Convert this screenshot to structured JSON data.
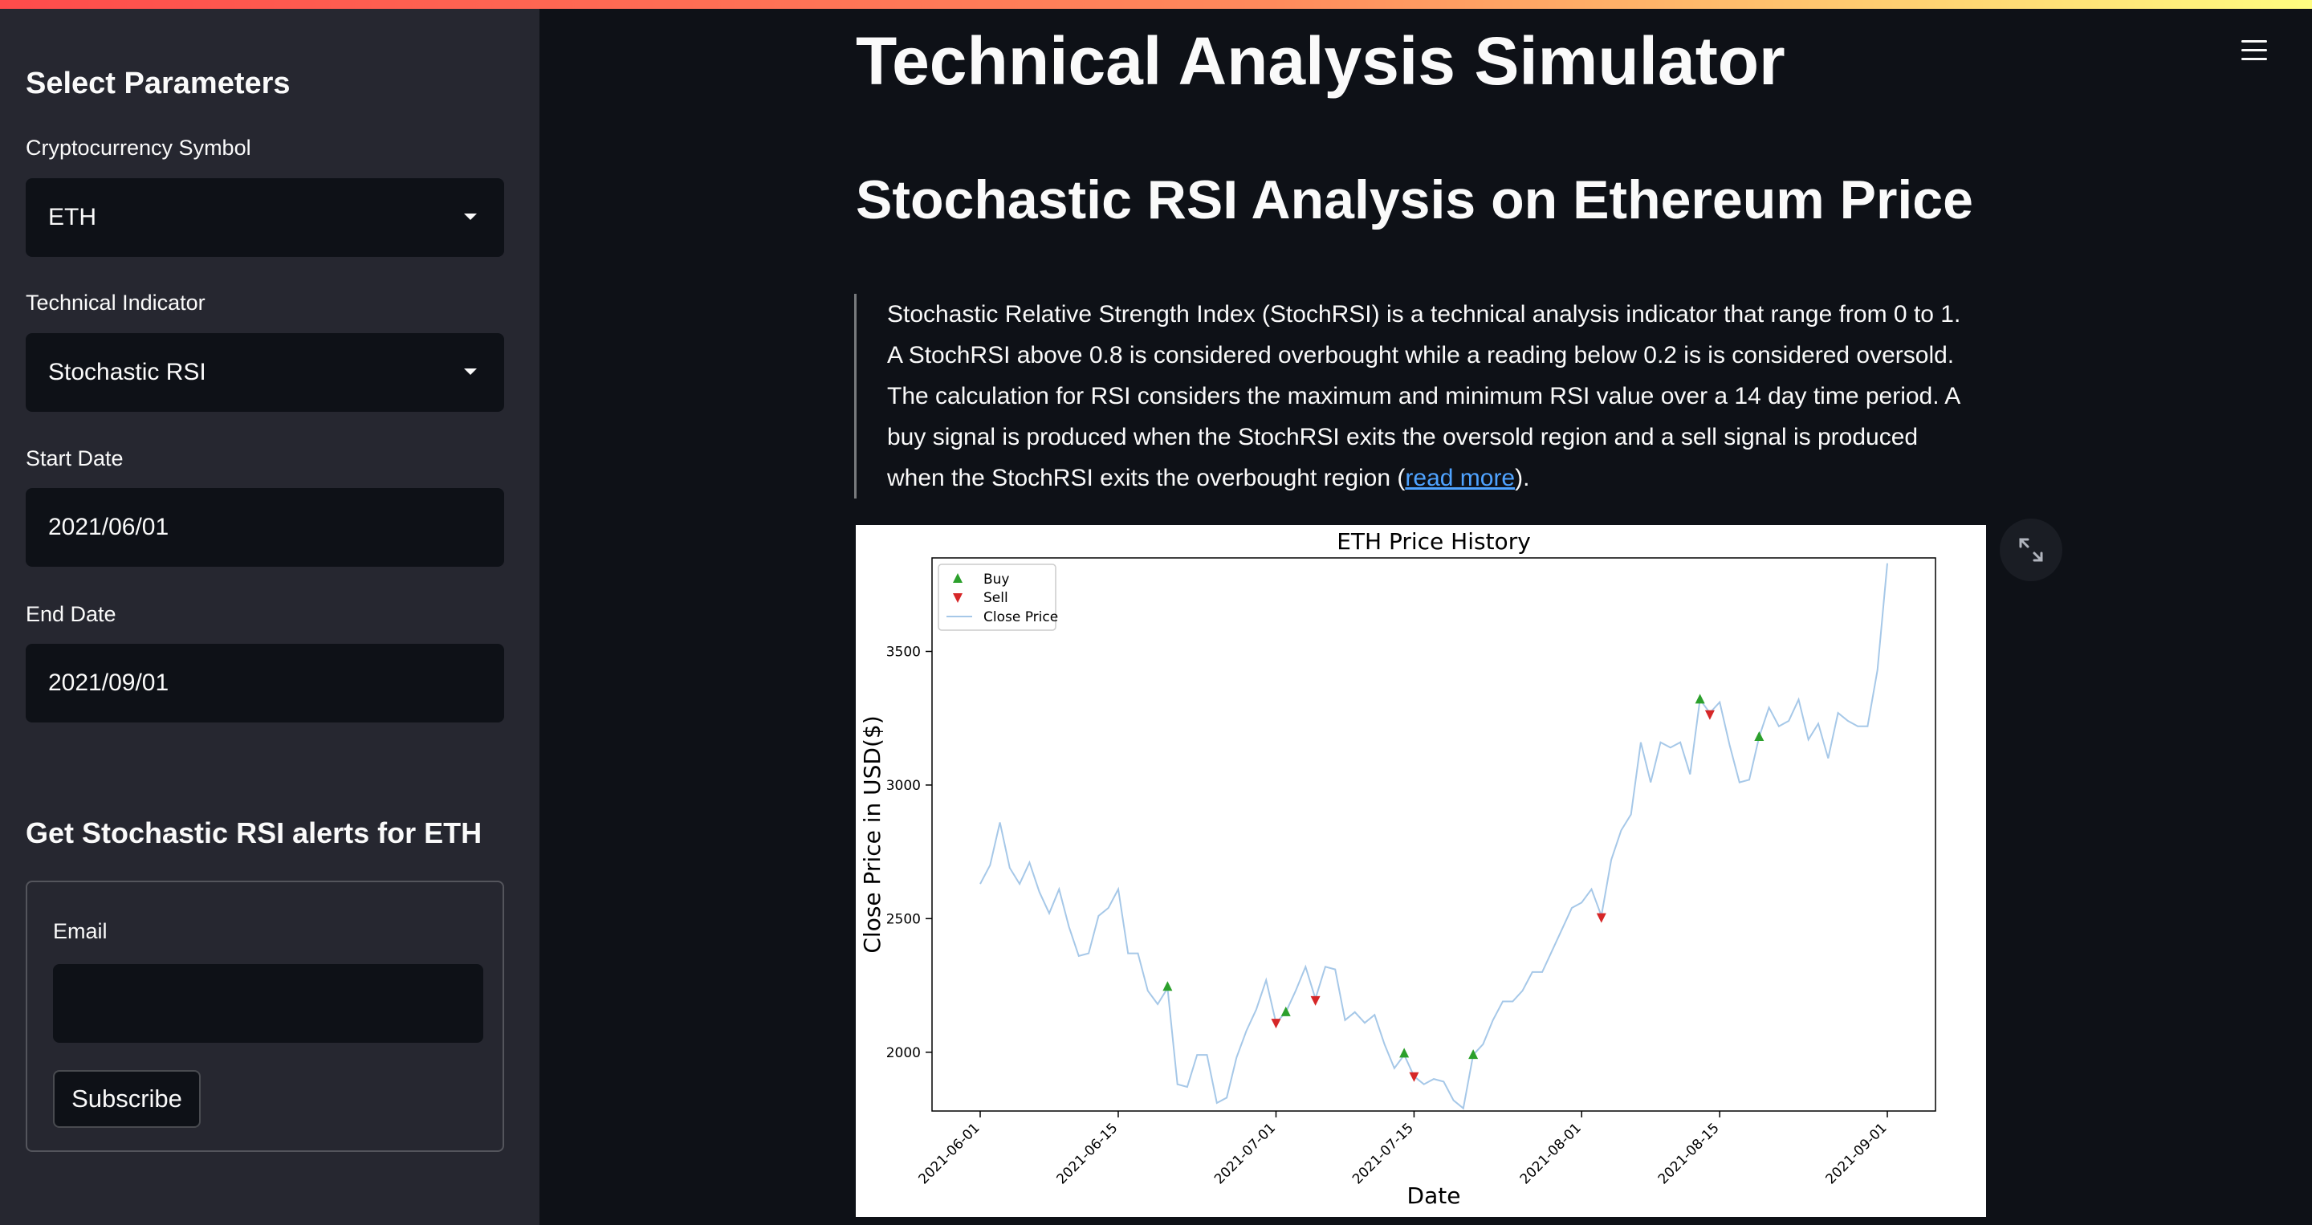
{
  "sidebar": {
    "title": "Select Parameters",
    "symbol_label": "Cryptocurrency Symbol",
    "symbol_value": "ETH",
    "indicator_label": "Technical Indicator",
    "indicator_value": "Stochastic RSI",
    "start_label": "Start Date",
    "start_value": "2021/06/01",
    "end_label": "End Date",
    "end_value": "2021/09/01",
    "alerts_title": "Get Stochastic RSI alerts for ETH",
    "email_label": "Email",
    "email_value": "",
    "subscribe_label": "Subscribe"
  },
  "main": {
    "title": "Technical Analysis Simulator",
    "section_title": "Stochastic RSI Analysis on Ethereum Price",
    "description": "Stochastic Relative Strength Index (StochRSI) is a technical analysis indicator that range from 0 to 1. A StochRSI above 0.8 is considered overbought while a reading below 0.2 is is considered oversold. The calculation for RSI considers the maximum and minimum RSI value over a 14 day time period. A buy signal is produced when the StochRSI exits the oversold region and a sell signal is produced when the StochRSI exits the overbought region (",
    "read_more": "read more",
    "description_end": ")."
  },
  "icons": {
    "menu": "hamburger-menu-icon",
    "expand": "fullscreen-expand-icon",
    "dropdown": "chevron-down-icon"
  },
  "colors": {
    "accent_link": "#4fa3ff",
    "buy": "#2ca02c",
    "sell": "#d62728",
    "price_line": "#a6c8e8"
  },
  "chart_data": {
    "type": "line",
    "title": "ETH Price History",
    "xlabel": "Date",
    "ylabel": "Close Price in USD($)",
    "xlim": [
      "2021-06-01",
      "2021-09-01"
    ],
    "ylim": [
      1780,
      3850
    ],
    "xticks": [
      "2021-06-01",
      "2021-06-15",
      "2021-07-01",
      "2021-07-15",
      "2021-08-01",
      "2021-08-15",
      "2021-09-01"
    ],
    "yticks": [
      2000,
      2500,
      3000,
      3500
    ],
    "legend": {
      "position": "top-left",
      "entries": [
        "Buy",
        "Sell",
        "Close Price"
      ]
    },
    "grid": false,
    "series": [
      {
        "name": "Close Price",
        "x": [
          "2021-06-01",
          "2021-06-02",
          "2021-06-03",
          "2021-06-04",
          "2021-06-05",
          "2021-06-06",
          "2021-06-07",
          "2021-06-08",
          "2021-06-09",
          "2021-06-10",
          "2021-06-11",
          "2021-06-12",
          "2021-06-13",
          "2021-06-14",
          "2021-06-15",
          "2021-06-16",
          "2021-06-17",
          "2021-06-18",
          "2021-06-19",
          "2021-06-20",
          "2021-06-21",
          "2021-06-22",
          "2021-06-23",
          "2021-06-24",
          "2021-06-25",
          "2021-06-26",
          "2021-06-27",
          "2021-06-28",
          "2021-06-29",
          "2021-06-30",
          "2021-07-01",
          "2021-07-02",
          "2021-07-03",
          "2021-07-04",
          "2021-07-05",
          "2021-07-06",
          "2021-07-07",
          "2021-07-08",
          "2021-07-09",
          "2021-07-10",
          "2021-07-11",
          "2021-07-12",
          "2021-07-13",
          "2021-07-14",
          "2021-07-15",
          "2021-07-16",
          "2021-07-17",
          "2021-07-18",
          "2021-07-19",
          "2021-07-20",
          "2021-07-21",
          "2021-07-22",
          "2021-07-23",
          "2021-07-24",
          "2021-07-25",
          "2021-07-26",
          "2021-07-27",
          "2021-07-28",
          "2021-07-29",
          "2021-07-30",
          "2021-07-31",
          "2021-08-01",
          "2021-08-02",
          "2021-08-03",
          "2021-08-04",
          "2021-08-05",
          "2021-08-06",
          "2021-08-07",
          "2021-08-08",
          "2021-08-09",
          "2021-08-10",
          "2021-08-11",
          "2021-08-12",
          "2021-08-13",
          "2021-08-14",
          "2021-08-15",
          "2021-08-16",
          "2021-08-17",
          "2021-08-18",
          "2021-08-19",
          "2021-08-20",
          "2021-08-21",
          "2021-08-22",
          "2021-08-23",
          "2021-08-24",
          "2021-08-25",
          "2021-08-26",
          "2021-08-27",
          "2021-08-28",
          "2021-08-29",
          "2021-08-30",
          "2021-08-31",
          "2021-09-01"
        ],
        "values": [
          2630,
          2700,
          2860,
          2690,
          2630,
          2710,
          2600,
          2520,
          2610,
          2470,
          2360,
          2370,
          2510,
          2540,
          2610,
          2370,
          2370,
          2230,
          2180,
          2240,
          1880,
          1870,
          1990,
          1990,
          1810,
          1830,
          1980,
          2080,
          2160,
          2270,
          2110,
          2150,
          2230,
          2320,
          2200,
          2320,
          2310,
          2120,
          2150,
          2110,
          2140,
          2030,
          1940,
          1990,
          1910,
          1880,
          1900,
          1890,
          1820,
          1790,
          1990,
          2030,
          2120,
          2190,
          2190,
          2230,
          2300,
          2300,
          2380,
          2460,
          2540,
          2560,
          2610,
          2510,
          2720,
          2830,
          2890,
          3160,
          3010,
          3160,
          3140,
          3160,
          3040,
          3320,
          3270,
          3310,
          3150,
          3010,
          3020,
          3180,
          3290,
          3220,
          3240,
          3320,
          3170,
          3230,
          3100,
          3270,
          3240,
          3220,
          3220,
          3430,
          3830
        ]
      }
    ],
    "buy_signals": [
      {
        "x": "2021-06-20",
        "y": 2245
      },
      {
        "x": "2021-07-02",
        "y": 2150
      },
      {
        "x": "2021-07-14",
        "y": 1995
      },
      {
        "x": "2021-07-21",
        "y": 1990
      },
      {
        "x": "2021-08-13",
        "y": 3320
      },
      {
        "x": "2021-08-19",
        "y": 3180
      }
    ],
    "sell_signals": [
      {
        "x": "2021-07-01",
        "y": 2110
      },
      {
        "x": "2021-07-05",
        "y": 2195
      },
      {
        "x": "2021-07-15",
        "y": 1910
      },
      {
        "x": "2021-08-03",
        "y": 2505
      },
      {
        "x": "2021-08-14",
        "y": 3265
      }
    ]
  }
}
